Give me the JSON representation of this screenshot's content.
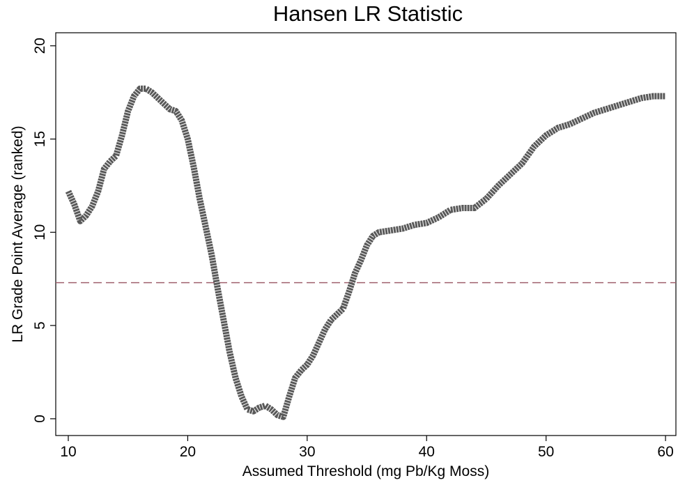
{
  "chart_data": {
    "type": "line",
    "title": "Hansen LR Statistic",
    "xlabel": "Assumed Threshold (mg Pb/Kg Moss)",
    "ylabel": "LR Grade Point Average (ranked)",
    "x": [
      10,
      10.5,
      11,
      11.5,
      12,
      12.5,
      13,
      13.5,
      14,
      14.5,
      15,
      15.5,
      16,
      16.5,
      17,
      17.5,
      18,
      18.5,
      19,
      19.5,
      20,
      20.5,
      21,
      21.5,
      22,
      22.5,
      23,
      23.5,
      24,
      24.5,
      25,
      25.5,
      26,
      26.5,
      27,
      27.5,
      28,
      28.5,
      29,
      29.5,
      30,
      30.5,
      31,
      31.5,
      32,
      32.5,
      33,
      33.5,
      34,
      34.5,
      35,
      35.5,
      36,
      37,
      38,
      39,
      40,
      41,
      42,
      43,
      44,
      45,
      46,
      47,
      48,
      49,
      50,
      51,
      52,
      53,
      54,
      55,
      56,
      57,
      58,
      59,
      60
    ],
    "series": [
      {
        "color": "#595959",
        "values": [
          12.2,
          11.5,
          10.6,
          10.9,
          11.4,
          12.2,
          13.4,
          13.8,
          14.1,
          15.2,
          16.5,
          17.3,
          17.7,
          17.7,
          17.5,
          17.2,
          16.9,
          16.6,
          16.5,
          16.0,
          15.0,
          13.5,
          11.8,
          10.3,
          8.8,
          7.0,
          5.3,
          3.6,
          2.2,
          1.2,
          0.5,
          0.4,
          0.6,
          0.7,
          0.5,
          0.2,
          0.1,
          1.2,
          2.2,
          2.6,
          2.9,
          3.4,
          4.1,
          4.8,
          5.3,
          5.6,
          5.9,
          6.8,
          7.8,
          8.5,
          9.3,
          9.8,
          10.0,
          10.1,
          10.2,
          10.4,
          10.5,
          10.8,
          11.2,
          11.3,
          11.3,
          11.8,
          12.5,
          13.1,
          13.7,
          14.6,
          15.2,
          15.6,
          15.8,
          16.1,
          16.4,
          16.6,
          16.8,
          17.0,
          17.2,
          17.3,
          17.3
        ]
      }
    ],
    "reference_line": {
      "y": 7.3,
      "color": "#a0606e"
    },
    "xlim": [
      8.95,
      60.87
    ],
    "ylim": [
      -0.9,
      20.7
    ],
    "xticks": [
      10,
      20,
      30,
      40,
      50,
      60
    ],
    "yticks": [
      0,
      5,
      10,
      15,
      20
    ]
  }
}
